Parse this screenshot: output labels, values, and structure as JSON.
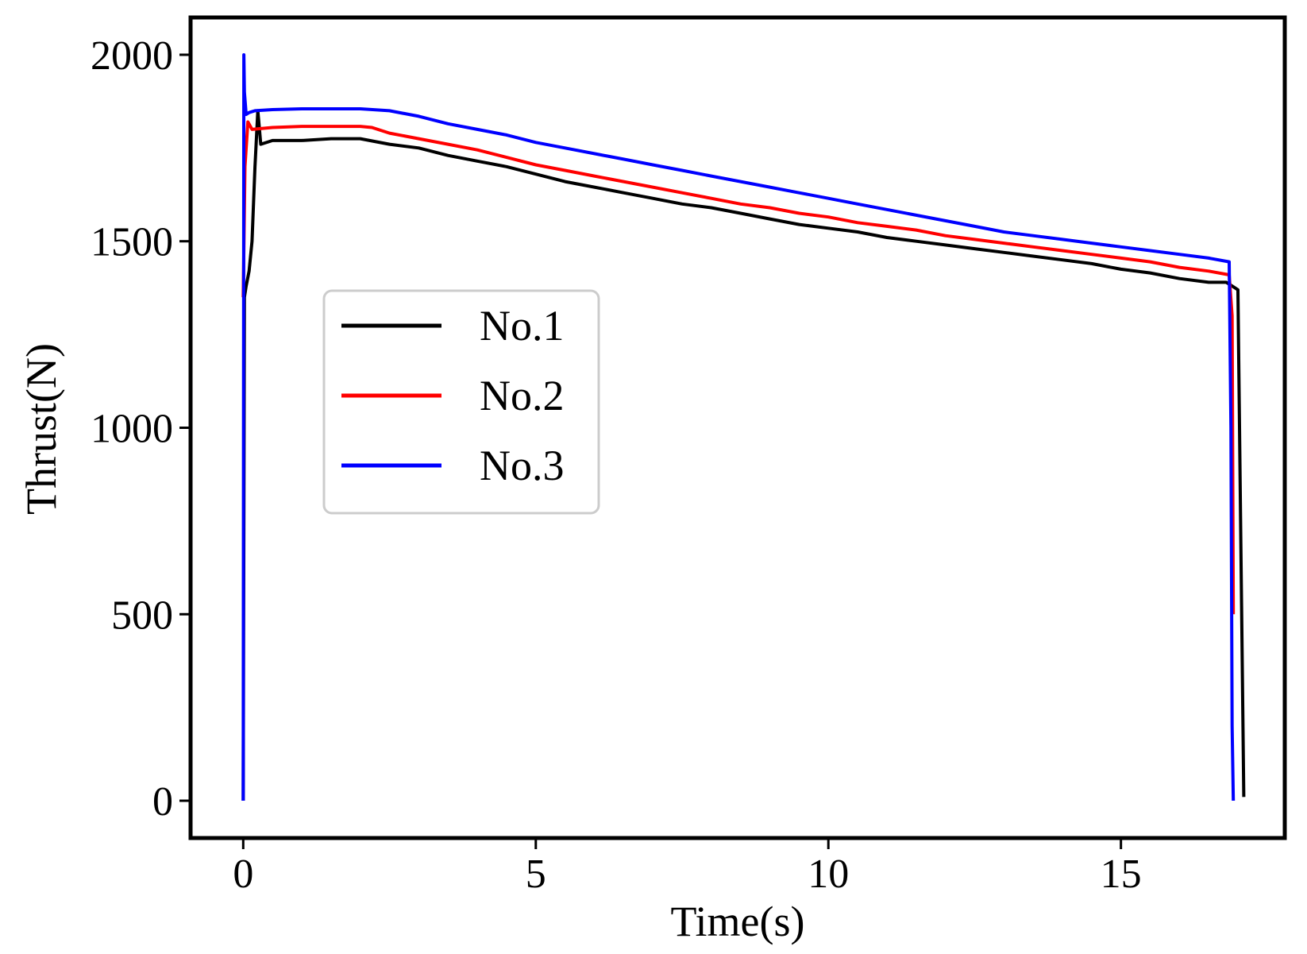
{
  "chart_data": {
    "type": "line",
    "title": "",
    "xlabel": "Time(s)",
    "ylabel": "Thrust(N)",
    "xlim": [
      -0.9,
      17.8
    ],
    "ylim": [
      -100,
      2100
    ],
    "xticks": [
      0,
      5,
      10,
      15
    ],
    "yticks": [
      0,
      500,
      1000,
      1500,
      2000
    ],
    "grid": false,
    "legend_position": "center-left",
    "series": [
      {
        "name": "No.1",
        "color": "#000000",
        "x": [
          0,
          0.02,
          0.05,
          0.1,
          0.15,
          0.2,
          0.25,
          0.3,
          0.5,
          1,
          1.5,
          2,
          2.5,
          3,
          3.5,
          4,
          4.5,
          5,
          5.5,
          6,
          6.5,
          7,
          7.5,
          8,
          8.5,
          9,
          9.5,
          10,
          10.5,
          11,
          11.5,
          12,
          12.5,
          13,
          13.5,
          14,
          14.5,
          15,
          15.5,
          16,
          16.5,
          16.8,
          16.9,
          17.0,
          17.1
        ],
        "y": [
          0,
          1350,
          1380,
          1420,
          1500,
          1700,
          1850,
          1760,
          1770,
          1770,
          1775,
          1775,
          1760,
          1750,
          1730,
          1715,
          1700,
          1680,
          1660,
          1645,
          1630,
          1615,
          1600,
          1590,
          1575,
          1560,
          1545,
          1535,
          1525,
          1510,
          1500,
          1490,
          1480,
          1470,
          1460,
          1450,
          1440,
          1425,
          1415,
          1400,
          1390,
          1390,
          1380,
          1370,
          10
        ]
      },
      {
        "name": "No.2",
        "color": "#ff0000",
        "x": [
          0,
          0.03,
          0.08,
          0.15,
          0.5,
          1,
          1.5,
          2,
          2.2,
          2.5,
          3,
          3.5,
          4,
          4.5,
          5,
          5.5,
          6,
          6.5,
          7,
          7.5,
          8,
          8.5,
          9,
          9.5,
          10,
          10.5,
          11,
          11.5,
          12,
          12.5,
          13,
          13.5,
          14,
          14.5,
          15,
          15.5,
          16,
          16.5,
          16.85,
          16.9,
          16.92
        ],
        "y": [
          1350,
          1700,
          1820,
          1800,
          1805,
          1808,
          1808,
          1808,
          1805,
          1790,
          1775,
          1760,
          1745,
          1725,
          1705,
          1690,
          1675,
          1660,
          1645,
          1630,
          1615,
          1600,
          1590,
          1575,
          1565,
          1550,
          1540,
          1530,
          1515,
          1505,
          1495,
          1485,
          1475,
          1465,
          1455,
          1445,
          1430,
          1420,
          1410,
          1300,
          500
        ]
      },
      {
        "name": "No.3",
        "color": "#0000ff",
        "x": [
          0,
          0.01,
          0.02,
          0.05,
          0.1,
          0.2,
          0.5,
          1,
          1.5,
          2,
          2.5,
          3,
          3.5,
          4,
          4.5,
          5,
          5.5,
          6,
          6.5,
          7,
          7.5,
          8,
          8.5,
          9,
          9.5,
          10,
          10.5,
          11,
          11.5,
          12,
          12.5,
          13,
          13.5,
          14,
          14.5,
          15,
          15.5,
          16,
          16.5,
          16.85,
          16.88,
          16.9,
          16.92
        ],
        "y": [
          0,
          2000,
          1900,
          1840,
          1845,
          1850,
          1853,
          1855,
          1855,
          1855,
          1850,
          1835,
          1815,
          1800,
          1785,
          1765,
          1750,
          1735,
          1720,
          1705,
          1690,
          1675,
          1660,
          1645,
          1630,
          1615,
          1600,
          1585,
          1570,
          1555,
          1540,
          1525,
          1515,
          1505,
          1495,
          1485,
          1475,
          1465,
          1455,
          1445,
          1000,
          200,
          0
        ]
      }
    ]
  }
}
